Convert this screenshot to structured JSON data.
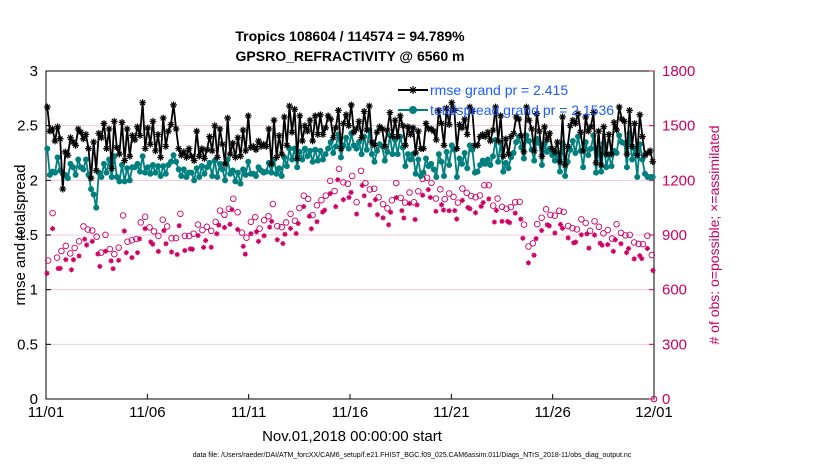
{
  "chart_data": {
    "type": "line",
    "title_line1": "Tropics 108604 / 114574 = 94.789%",
    "title_line2": "GPSRO_REFRACTIVITY @ 6560 m",
    "xlabel": "Nov.01,2018 00:00:00 start",
    "ylabel": "rmse and totalspread",
    "y2label": "# of obs: o=possible; ×=assimilated",
    "footer": "data file: /Users/raeder/DAI/ATM_forcXX/CAM6_setup/f.e21.FHIST_BGC.f09_025.CAM6assim.011/Diags_NTrS_2018-11/obs_diag_output.nc",
    "x_tick_labels": [
      "11/01",
      "11/06",
      "11/11",
      "11/16",
      "11/21",
      "11/26",
      "12/01"
    ],
    "y_tick_labels": [
      "0",
      "0.5",
      "1",
      "1.5",
      "2",
      "2.5",
      "3"
    ],
    "y2_tick_labels": [
      "0",
      "300",
      "600",
      "900",
      "1200",
      "1500",
      "1800"
    ],
    "xlim": [
      0,
      30
    ],
    "ylim": [
      0,
      3
    ],
    "y2lim": [
      0,
      1800
    ],
    "legend": [
      "rmse grand pr = 2.415",
      "totalspread grand pr = 2.1536"
    ],
    "colors": {
      "rmse": "#000000",
      "totalspread": "#007f7f",
      "obs": "#cc0066",
      "legend_text": "#1a5cff"
    },
    "series": [
      {
        "name": "rmse",
        "axis": "left",
        "marker": "asterisk",
        "values": [
          2.67,
          2.45,
          2.47,
          2.36,
          2.49,
          2.38,
          1.92,
          2.26,
          2.23,
          2.39,
          2.35,
          2.32,
          2.47,
          2.44,
          2.38,
          2.42,
          2.29,
          2.02,
          2.35,
          2.09,
          2.43,
          2.39,
          2.52,
          2.29,
          2.47,
          2.11,
          2.54,
          2.3,
          2.24,
          2.53,
          2.18,
          2.47,
          2.22,
          2.41,
          2.37,
          2.49,
          2.41,
          2.71,
          2.29,
          2.48,
          2.33,
          2.54,
          2.27,
          2.42,
          2.21,
          2.57,
          2.31,
          2.45,
          2.51,
          2.69,
          2.47,
          2.29,
          2.23,
          2.26,
          2.21,
          2.29,
          2.22,
          2.18,
          2.45,
          2.22,
          2.29,
          2.2,
          2.28,
          2.4,
          2.27,
          2.5,
          2.21,
          2.47,
          2.33,
          2.15,
          2.57,
          2.24,
          2.34,
          2.21,
          2.39,
          2.22,
          2.46,
          2.27,
          2.59,
          2.3,
          2.31,
          2.28,
          2.36,
          2.31,
          2.33,
          2.31,
          2.47,
          2.15,
          2.55,
          2.21,
          2.41,
          2.24,
          2.58,
          2.32,
          2.68,
          2.44,
          2.65,
          2.2,
          2.59,
          2.36,
          2.5,
          2.45,
          2.55,
          2.36,
          2.59,
          2.42,
          2.6,
          2.42,
          2.48,
          2.59,
          2.56,
          2.39,
          2.48,
          2.64,
          2.29,
          2.52,
          2.6,
          2.5,
          2.69,
          2.44,
          2.47,
          2.54,
          2.39,
          2.63,
          2.46,
          2.68,
          2.35,
          2.32,
          2.44,
          2.49,
          2.47,
          2.31,
          2.46,
          2.62,
          2.4,
          2.55,
          2.4,
          2.59,
          2.5,
          2.32,
          2.49,
          2.42,
          2.48,
          2.25,
          2.45,
          2.29,
          2.29,
          2.52,
          2.47,
          2.47,
          2.45,
          2.37,
          2.64,
          2.52,
          2.32,
          2.66,
          2.51,
          2.71,
          2.64,
          2.29,
          2.51,
          2.48,
          2.56,
          2.42,
          2.67,
          2.63,
          2.32,
          2.32,
          2.4,
          2.42,
          2.4,
          2.44,
          2.36,
          2.46,
          2.67,
          2.36,
          2.59,
          2.22,
          2.38,
          2.24,
          2.4,
          2.43,
          2.58,
          2.56,
          2.41,
          2.26,
          2.67,
          2.55,
          2.47,
          2.27,
          2.61,
          2.45,
          2.22,
          2.49,
          2.37,
          2.43,
          2.29,
          2.26,
          2.35,
          2.17,
          2.58,
          2.14,
          2.31,
          2.5,
          2.55,
          2.52,
          2.61,
          2.44,
          2.27,
          2.58,
          2.45,
          2.49,
          2.62,
          2.16,
          2.45,
          2.14,
          2.49,
          2.24,
          2.42,
          2.24,
          2.53,
          2.46,
          2.67,
          2.56,
          2.54,
          2.24,
          2.64,
          2.31,
          2.52,
          2.23,
          2.6,
          2.4,
          2.23,
          2.25,
          2.27,
          2.17
        ]
      },
      {
        "name": "totalspread",
        "axis": "left",
        "marker": "circle-filled",
        "values": [
          2.29,
          2.05,
          2.08,
          2.07,
          2.21,
          2.09,
          2.06,
          2.05,
          2.02,
          2.15,
          2.12,
          2.05,
          2.19,
          2.12,
          2.1,
          2.19,
          2.05,
          1.92,
          1.87,
          1.75,
          2.07,
          2.03,
          2.15,
          2.07,
          2.19,
          2.03,
          2.22,
          2.03,
          1.99,
          2.14,
          1.99,
          2.11,
          2.0,
          2.12,
          2.12,
          2.15,
          2.08,
          2.22,
          2.07,
          2.12,
          2.06,
          2.14,
          2.07,
          2.13,
          2.04,
          2.13,
          2.06,
          2.14,
          2.17,
          2.23,
          2.17,
          2.1,
          2.04,
          2.1,
          2.03,
          2.07,
          2.07,
          2.0,
          2.11,
          2.03,
          2.13,
          2.06,
          2.12,
          2.16,
          2.04,
          2.18,
          2.03,
          2.15,
          2.1,
          2.0,
          2.19,
          2.06,
          2.09,
          1.99,
          2.07,
          1.97,
          2.1,
          2.05,
          2.17,
          2.06,
          2.06,
          2.04,
          2.12,
          2.09,
          2.07,
          2.08,
          2.16,
          2.07,
          2.19,
          2.06,
          2.11,
          2.04,
          2.21,
          2.13,
          2.29,
          2.19,
          2.29,
          2.12,
          2.26,
          2.19,
          2.29,
          2.22,
          2.27,
          2.17,
          2.28,
          2.18,
          2.27,
          2.19,
          2.24,
          2.29,
          2.35,
          2.25,
          2.31,
          2.42,
          2.21,
          2.32,
          2.39,
          2.29,
          2.43,
          2.32,
          2.29,
          2.35,
          2.24,
          2.4,
          2.28,
          2.46,
          2.24,
          2.17,
          2.27,
          2.33,
          2.31,
          2.18,
          2.26,
          2.41,
          2.24,
          2.37,
          2.24,
          2.4,
          2.3,
          2.13,
          2.24,
          2.19,
          2.24,
          2.06,
          2.19,
          2.04,
          2.07,
          2.2,
          2.13,
          2.15,
          2.1,
          2.03,
          2.24,
          2.17,
          2.04,
          2.26,
          2.14,
          2.32,
          2.28,
          2.03,
          2.2,
          2.15,
          2.25,
          2.11,
          2.32,
          2.28,
          2.07,
          2.08,
          2.14,
          2.18,
          2.15,
          2.19,
          2.14,
          2.22,
          2.37,
          2.17,
          2.34,
          2.08,
          2.16,
          2.11,
          2.21,
          2.25,
          2.35,
          2.4,
          2.3,
          2.2,
          2.41,
          2.36,
          2.28,
          2.18,
          2.38,
          2.34,
          2.14,
          2.33,
          2.26,
          2.29,
          2.23,
          2.18,
          2.23,
          2.08,
          2.34,
          2.04,
          2.17,
          2.28,
          2.36,
          2.25,
          2.4,
          2.27,
          2.12,
          2.35,
          2.23,
          2.29,
          2.41,
          2.07,
          2.3,
          2.08,
          2.34,
          2.12,
          2.23,
          2.13,
          2.27,
          2.25,
          2.41,
          2.35,
          2.34,
          2.12,
          2.43,
          2.19,
          2.29,
          2.03,
          2.33,
          2.19,
          2.06,
          2.03,
          2.03,
          2.03
        ]
      },
      {
        "name": "obs possible",
        "axis": "right",
        "marker": "circle-open",
        "values": [
          760,
          1020,
          776,
          812,
          840,
          799,
          829,
          865,
          947,
          930,
          925,
          891,
          803,
          901,
          823,
          795,
          831,
          1007,
          863,
          871,
          878,
          969,
          1000,
          942,
          920,
          895,
          984,
          947,
          882,
          883,
          1016,
          895,
          894,
          907,
          957,
          927,
          945,
          923,
          972,
          1034,
          1011,
          1044,
          1099,
          1025,
          913,
          885,
          972,
          998,
          935,
          981,
          1003,
          1070,
          949,
          943,
          969,
          1016,
          978,
          1048,
          1116,
          1098,
          1009,
          1063,
          1091,
          1116,
          1197,
          1141,
          1263,
          1189,
          1181,
          1224,
          1080,
          1252,
          1185,
          1150,
          1154,
          1107,
          1069,
          1046,
          1090,
          1185,
          1104,
          1078,
          1133,
          1080,
          1140,
          1208,
          1214,
          1186,
          1100,
          1151,
          1097,
          1128,
          1109,
          1078,
          1155,
          1131,
          1114,
          1107,
          1117,
          1173,
          1173,
          1061,
          1100,
          1055,
          1044,
          1053,
          1080,
          1082,
          957,
          837,
          854,
          960,
          995,
          1041,
          1010,
          1006,
          1033,
          1027,
          949,
          937,
          931,
          986,
          966,
          923,
          975,
          945,
          909,
          927,
          880,
          959,
          912,
          898,
          901,
          859,
          851,
          850,
          896,
          790
        ]
      }
    ]
  }
}
